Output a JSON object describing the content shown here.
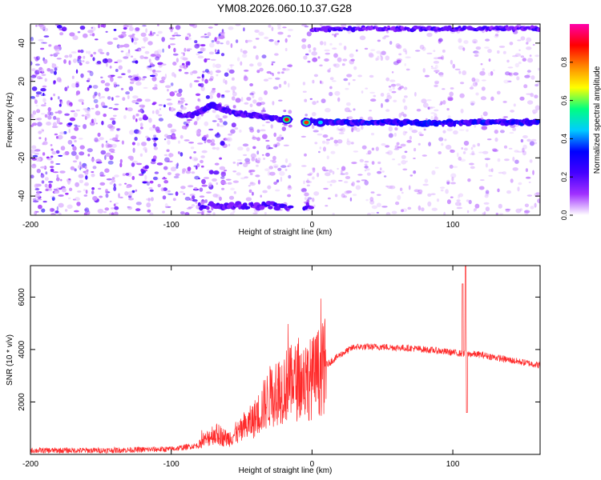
{
  "title": "YM08.2026.060.10.37.G28",
  "chart_data": [
    {
      "type": "heatmap",
      "xlabel": "Height of straight line (km)",
      "ylabel": "Frequency (Hz)",
      "xlim": [
        -200,
        162
      ],
      "ylim": [
        -50,
        50
      ],
      "xticks": [
        -200,
        -100,
        0,
        100
      ],
      "yticks": [
        -40,
        -20,
        0,
        20,
        40
      ],
      "grid": false,
      "colorbar": {
        "label": "Normalized spectral amplitude",
        "range": [
          0,
          1
        ],
        "ticks": [
          0.0,
          0.2,
          0.4,
          0.6,
          0.8
        ],
        "colors": [
          "#ffffff",
          "#a030ff",
          "#4400ff",
          "#0000ff",
          "#00ccff",
          "#00ff80",
          "#ffff00",
          "#ff8800",
          "#ff0000",
          "#ff00aa"
        ]
      },
      "gap": {
        "from": -15,
        "to": -6
      },
      "ridge": [
        {
          "x": -88,
          "y": 2
        },
        {
          "x": -80,
          "y": 4
        },
        {
          "x": -72,
          "y": 8
        },
        {
          "x": -62,
          "y": 5
        },
        {
          "x": -50,
          "y": 3
        },
        {
          "x": -40,
          "y": 2
        },
        {
          "x": -30,
          "y": 1
        },
        {
          "x": -18,
          "y": 0
        },
        {
          "x": -2,
          "y": -1
        },
        {
          "x": 20,
          "y": -1.5
        },
        {
          "x": 60,
          "y": -1.5
        },
        {
          "x": 85,
          "y": -2
        },
        {
          "x": 110,
          "y": -1.5
        },
        {
          "x": 160,
          "y": -1.5
        }
      ],
      "hotspots": [
        {
          "x": -18,
          "y": 0,
          "amp": 0.9
        },
        {
          "x": -4,
          "y": -1.5,
          "amp": 0.85
        },
        {
          "x": 6,
          "y": -1.5,
          "amp": 0.45
        }
      ]
    },
    {
      "type": "line",
      "xlabel": "Height of straight line (km)",
      "ylabel": "SNR (10 * v/v)",
      "xlim": [
        -200,
        162
      ],
      "ylim": [
        0,
        7200
      ],
      "xticks": [
        -200,
        -100,
        0,
        100
      ],
      "yticks": [
        2000,
        4000,
        6000
      ],
      "grid": false,
      "color": "#ff2a2a",
      "envelope": [
        {
          "x": -200,
          "y": 150
        },
        {
          "x": -150,
          "y": 150
        },
        {
          "x": -100,
          "y": 200
        },
        {
          "x": -80,
          "y": 350
        },
        {
          "x": -70,
          "y": 800
        },
        {
          "x": -60,
          "y": 600
        },
        {
          "x": -50,
          "y": 900
        },
        {
          "x": -40,
          "y": 1400
        },
        {
          "x": -30,
          "y": 2200
        },
        {
          "x": -20,
          "y": 2600
        },
        {
          "x": -10,
          "y": 2800
        },
        {
          "x": 0,
          "y": 2900
        },
        {
          "x": 10,
          "y": 3400
        },
        {
          "x": 20,
          "y": 3800
        },
        {
          "x": 30,
          "y": 4100
        },
        {
          "x": 50,
          "y": 4100
        },
        {
          "x": 70,
          "y": 4050
        },
        {
          "x": 90,
          "y": 3950
        },
        {
          "x": 105,
          "y": 3850
        },
        {
          "x": 120,
          "y": 3800
        },
        {
          "x": 140,
          "y": 3600
        },
        {
          "x": 162,
          "y": 3400
        }
      ],
      "spikes": [
        {
          "x": 107,
          "y": 6500
        },
        {
          "x": 109,
          "y": 7200
        },
        {
          "x": 110,
          "y": 1600
        }
      ]
    }
  ]
}
